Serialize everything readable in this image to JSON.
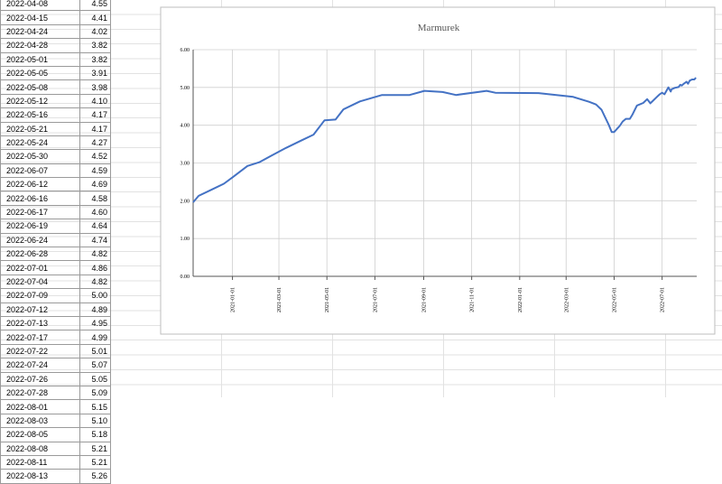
{
  "table": {
    "rows": [
      [
        "2022-04-08",
        "4.55"
      ],
      [
        "2022-04-15",
        "4.41"
      ],
      [
        "2022-04-24",
        "4.02"
      ],
      [
        "2022-04-28",
        "3.82"
      ],
      [
        "2022-05-01",
        "3.82"
      ],
      [
        "2022-05-05",
        "3.91"
      ],
      [
        "2022-05-08",
        "3.98"
      ],
      [
        "2022-05-12",
        "4.10"
      ],
      [
        "2022-05-16",
        "4.17"
      ],
      [
        "2022-05-21",
        "4.17"
      ],
      [
        "2022-05-24",
        "4.27"
      ],
      [
        "2022-05-30",
        "4.52"
      ],
      [
        "2022-06-07",
        "4.59"
      ],
      [
        "2022-06-12",
        "4.69"
      ],
      [
        "2022-06-16",
        "4.58"
      ],
      [
        "2022-06-17",
        "4.60"
      ],
      [
        "2022-06-19",
        "4.64"
      ],
      [
        "2022-06-24",
        "4.74"
      ],
      [
        "2022-06-28",
        "4.82"
      ],
      [
        "2022-07-01",
        "4.86"
      ],
      [
        "2022-07-04",
        "4.82"
      ],
      [
        "2022-07-09",
        "5.00"
      ],
      [
        "2022-07-12",
        "4.89"
      ],
      [
        "2022-07-13",
        "4.95"
      ],
      [
        "2022-07-17",
        "4.99"
      ],
      [
        "2022-07-22",
        "5.01"
      ],
      [
        "2022-07-24",
        "5.07"
      ],
      [
        "2022-07-26",
        "5.05"
      ],
      [
        "2022-07-28",
        "5.09"
      ],
      [
        "2022-08-01",
        "5.15"
      ],
      [
        "2022-08-03",
        "5.10"
      ],
      [
        "2022-08-05",
        "5.18"
      ],
      [
        "2022-08-08",
        "5.21"
      ],
      [
        "2022-08-11",
        "5.21"
      ],
      [
        "2022-08-13",
        "5.26"
      ]
    ]
  },
  "chart_data": {
    "type": "line",
    "title": "Marmurek",
    "color": "#4472c4",
    "grid": true,
    "x": [
      "2020-11-12",
      "2020-11-19",
      "2020-12-06",
      "2020-12-21",
      "2021-01-01",
      "2021-01-20",
      "2021-02-04",
      "2021-02-20",
      "2021-03-10",
      "2021-03-28",
      "2021-04-14",
      "2021-04-28",
      "2021-05-12",
      "2021-05-22",
      "2021-06-12",
      "2021-07-10",
      "2021-08-14",
      "2021-09-02",
      "2021-09-25",
      "2021-10-12",
      "2021-11-20",
      "2021-12-01",
      "2022-01-25",
      "2022-03-10",
      "2022-03-30",
      "2022-04-08",
      "2022-04-15",
      "2022-04-24",
      "2022-04-28",
      "2022-05-01",
      "2022-05-05",
      "2022-05-08",
      "2022-05-12",
      "2022-05-16",
      "2022-05-21",
      "2022-05-24",
      "2022-05-30",
      "2022-06-07",
      "2022-06-12",
      "2022-06-16",
      "2022-06-17",
      "2022-06-19",
      "2022-06-24",
      "2022-06-28",
      "2022-07-01",
      "2022-07-04",
      "2022-07-09",
      "2022-07-12",
      "2022-07-13",
      "2022-07-17",
      "2022-07-22",
      "2022-07-24",
      "2022-07-26",
      "2022-07-28",
      "2022-08-01",
      "2022-08-03",
      "2022-08-05",
      "2022-08-08",
      "2022-08-11",
      "2022-08-13"
    ],
    "values": [
      1.96,
      2.13,
      2.3,
      2.45,
      2.62,
      2.92,
      3.02,
      3.2,
      3.4,
      3.58,
      3.75,
      4.13,
      4.15,
      4.42,
      4.63,
      4.8,
      4.8,
      4.91,
      4.88,
      4.8,
      4.91,
      4.86,
      4.85,
      4.75,
      4.62,
      4.55,
      4.41,
      4.02,
      3.82,
      3.82,
      3.91,
      3.98,
      4.1,
      4.17,
      4.17,
      4.27,
      4.52,
      4.59,
      4.69,
      4.58,
      4.6,
      4.64,
      4.74,
      4.82,
      4.86,
      4.82,
      5.0,
      4.89,
      4.95,
      4.99,
      5.01,
      5.07,
      5.05,
      5.09,
      5.15,
      5.1,
      5.18,
      5.21,
      5.21,
      5.26
    ],
    "xlim": [
      "2020-11-12",
      "2022-08-14"
    ],
    "xticks": [
      "2021-01-01",
      "2021-03-01",
      "2021-05-01",
      "2021-07-01",
      "2021-09-01",
      "2021-11-01",
      "2022-01-01",
      "2022-03-01",
      "2022-05-01",
      "2022-07-01"
    ],
    "ylim": [
      0,
      6
    ],
    "yticks": [
      {
        "value": 0,
        "label": "0.00"
      },
      {
        "value": 1,
        "label": "1.00"
      },
      {
        "value": 2,
        "label": "2.00"
      },
      {
        "value": 3,
        "label": "3.00"
      },
      {
        "value": 4,
        "label": "4.00"
      },
      {
        "value": 5,
        "label": "5.00"
      },
      {
        "value": 6,
        "label": "6.00"
      }
    ]
  }
}
